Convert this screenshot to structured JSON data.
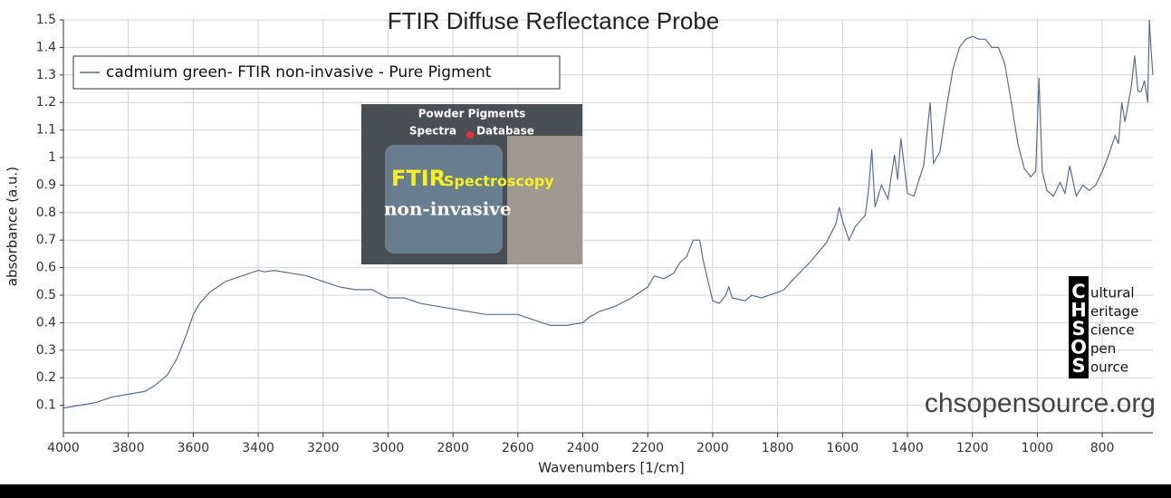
{
  "chart_data": {
    "type": "line",
    "title": "FTIR Diffuse Reflectance Probe",
    "x_label": "Wavenumbers [1/cm]",
    "y_label": "absorbance (a.u.)",
    "xlim": [
      4000,
      644
    ],
    "ylim": [
      0,
      1.5
    ],
    "xticks": [
      4000,
      3800,
      3600,
      3400,
      3200,
      3000,
      2800,
      2600,
      2400,
      2200,
      2000,
      1800,
      1600,
      1400,
      1200,
      1000,
      800
    ],
    "yticks": [
      0.1,
      0.2,
      0.3,
      0.4,
      0.5,
      0.6,
      0.7,
      0.8,
      0.9,
      1,
      1.1,
      1.2,
      1.3,
      1.4,
      1.5
    ],
    "grid": true,
    "legend": "upper left",
    "x": [
      4000,
      3950,
      3900,
      3850,
      3800,
      3750,
      3720,
      3700,
      3680,
      3650,
      3620,
      3600,
      3580,
      3550,
      3500,
      3450,
      3400,
      3380,
      3350,
      3300,
      3250,
      3200,
      3150,
      3100,
      3050,
      3000,
      2950,
      2900,
      2850,
      2800,
      2750,
      2700,
      2650,
      2600,
      2550,
      2500,
      2450,
      2400,
      2380,
      2350,
      2300,
      2250,
      2200,
      2180,
      2150,
      2120,
      2100,
      2080,
      2060,
      2040,
      2030,
      2010,
      2000,
      1980,
      1960,
      1950,
      1940,
      1900,
      1880,
      1850,
      1800,
      1780,
      1750,
      1700,
      1650,
      1620,
      1610,
      1600,
      1580,
      1560,
      1530,
      1520,
      1510,
      1500,
      1480,
      1460,
      1440,
      1430,
      1420,
      1400,
      1380,
      1370,
      1350,
      1330,
      1320,
      1300,
      1280,
      1260,
      1240,
      1220,
      1200,
      1180,
      1160,
      1140,
      1120,
      1100,
      1080,
      1060,
      1040,
      1020,
      1005,
      995,
      985,
      970,
      950,
      930,
      915,
      900,
      880,
      860,
      840,
      820,
      800,
      780,
      760,
      750,
      740,
      730,
      710,
      700,
      690,
      680,
      670,
      660,
      655,
      650,
      644
    ],
    "series": [
      {
        "name": "cadmium green- FTIR non-invasive - Pure Pigment",
        "color": "#5a6e91",
        "values": [
          0.09,
          0.1,
          0.11,
          0.13,
          0.14,
          0.15,
          0.17,
          0.19,
          0.21,
          0.27,
          0.36,
          0.43,
          0.47,
          0.51,
          0.55,
          0.57,
          0.59,
          0.585,
          0.59,
          0.58,
          0.57,
          0.55,
          0.53,
          0.52,
          0.52,
          0.49,
          0.49,
          0.47,
          0.46,
          0.45,
          0.44,
          0.43,
          0.43,
          0.43,
          0.41,
          0.39,
          0.39,
          0.4,
          0.42,
          0.44,
          0.46,
          0.49,
          0.53,
          0.57,
          0.56,
          0.58,
          0.62,
          0.64,
          0.7,
          0.7,
          0.63,
          0.53,
          0.48,
          0.47,
          0.5,
          0.53,
          0.49,
          0.48,
          0.5,
          0.49,
          0.51,
          0.52,
          0.56,
          0.62,
          0.69,
          0.76,
          0.82,
          0.77,
          0.7,
          0.75,
          0.79,
          0.88,
          1.03,
          0.82,
          0.9,
          0.85,
          1.01,
          0.92,
          1.07,
          0.87,
          0.86,
          0.9,
          0.97,
          1.2,
          0.98,
          1.02,
          1.18,
          1.32,
          1.4,
          1.43,
          1.44,
          1.43,
          1.43,
          1.4,
          1.4,
          1.34,
          1.2,
          1.05,
          0.96,
          0.93,
          0.95,
          1.29,
          0.95,
          0.88,
          0.86,
          0.91,
          0.87,
          0.97,
          0.86,
          0.9,
          0.88,
          0.9,
          0.95,
          1.01,
          1.08,
          1.05,
          1.2,
          1.13,
          1.26,
          1.37,
          1.24,
          1.24,
          1.28,
          1.2,
          1.5,
          1.4,
          1.3
        ]
      }
    ],
    "inset_text": [
      "Powder Pigments",
      "Spectra",
      "Database",
      "FTIR",
      "Spectroscopy",
      "non-invasive"
    ],
    "logo": [
      [
        "C",
        "ultural"
      ],
      [
        "H",
        "eritage"
      ],
      [
        "S",
        "cience"
      ],
      [
        "O",
        "pen"
      ],
      [
        "S",
        "ource"
      ]
    ],
    "watermark": "chsopensource.org"
  }
}
